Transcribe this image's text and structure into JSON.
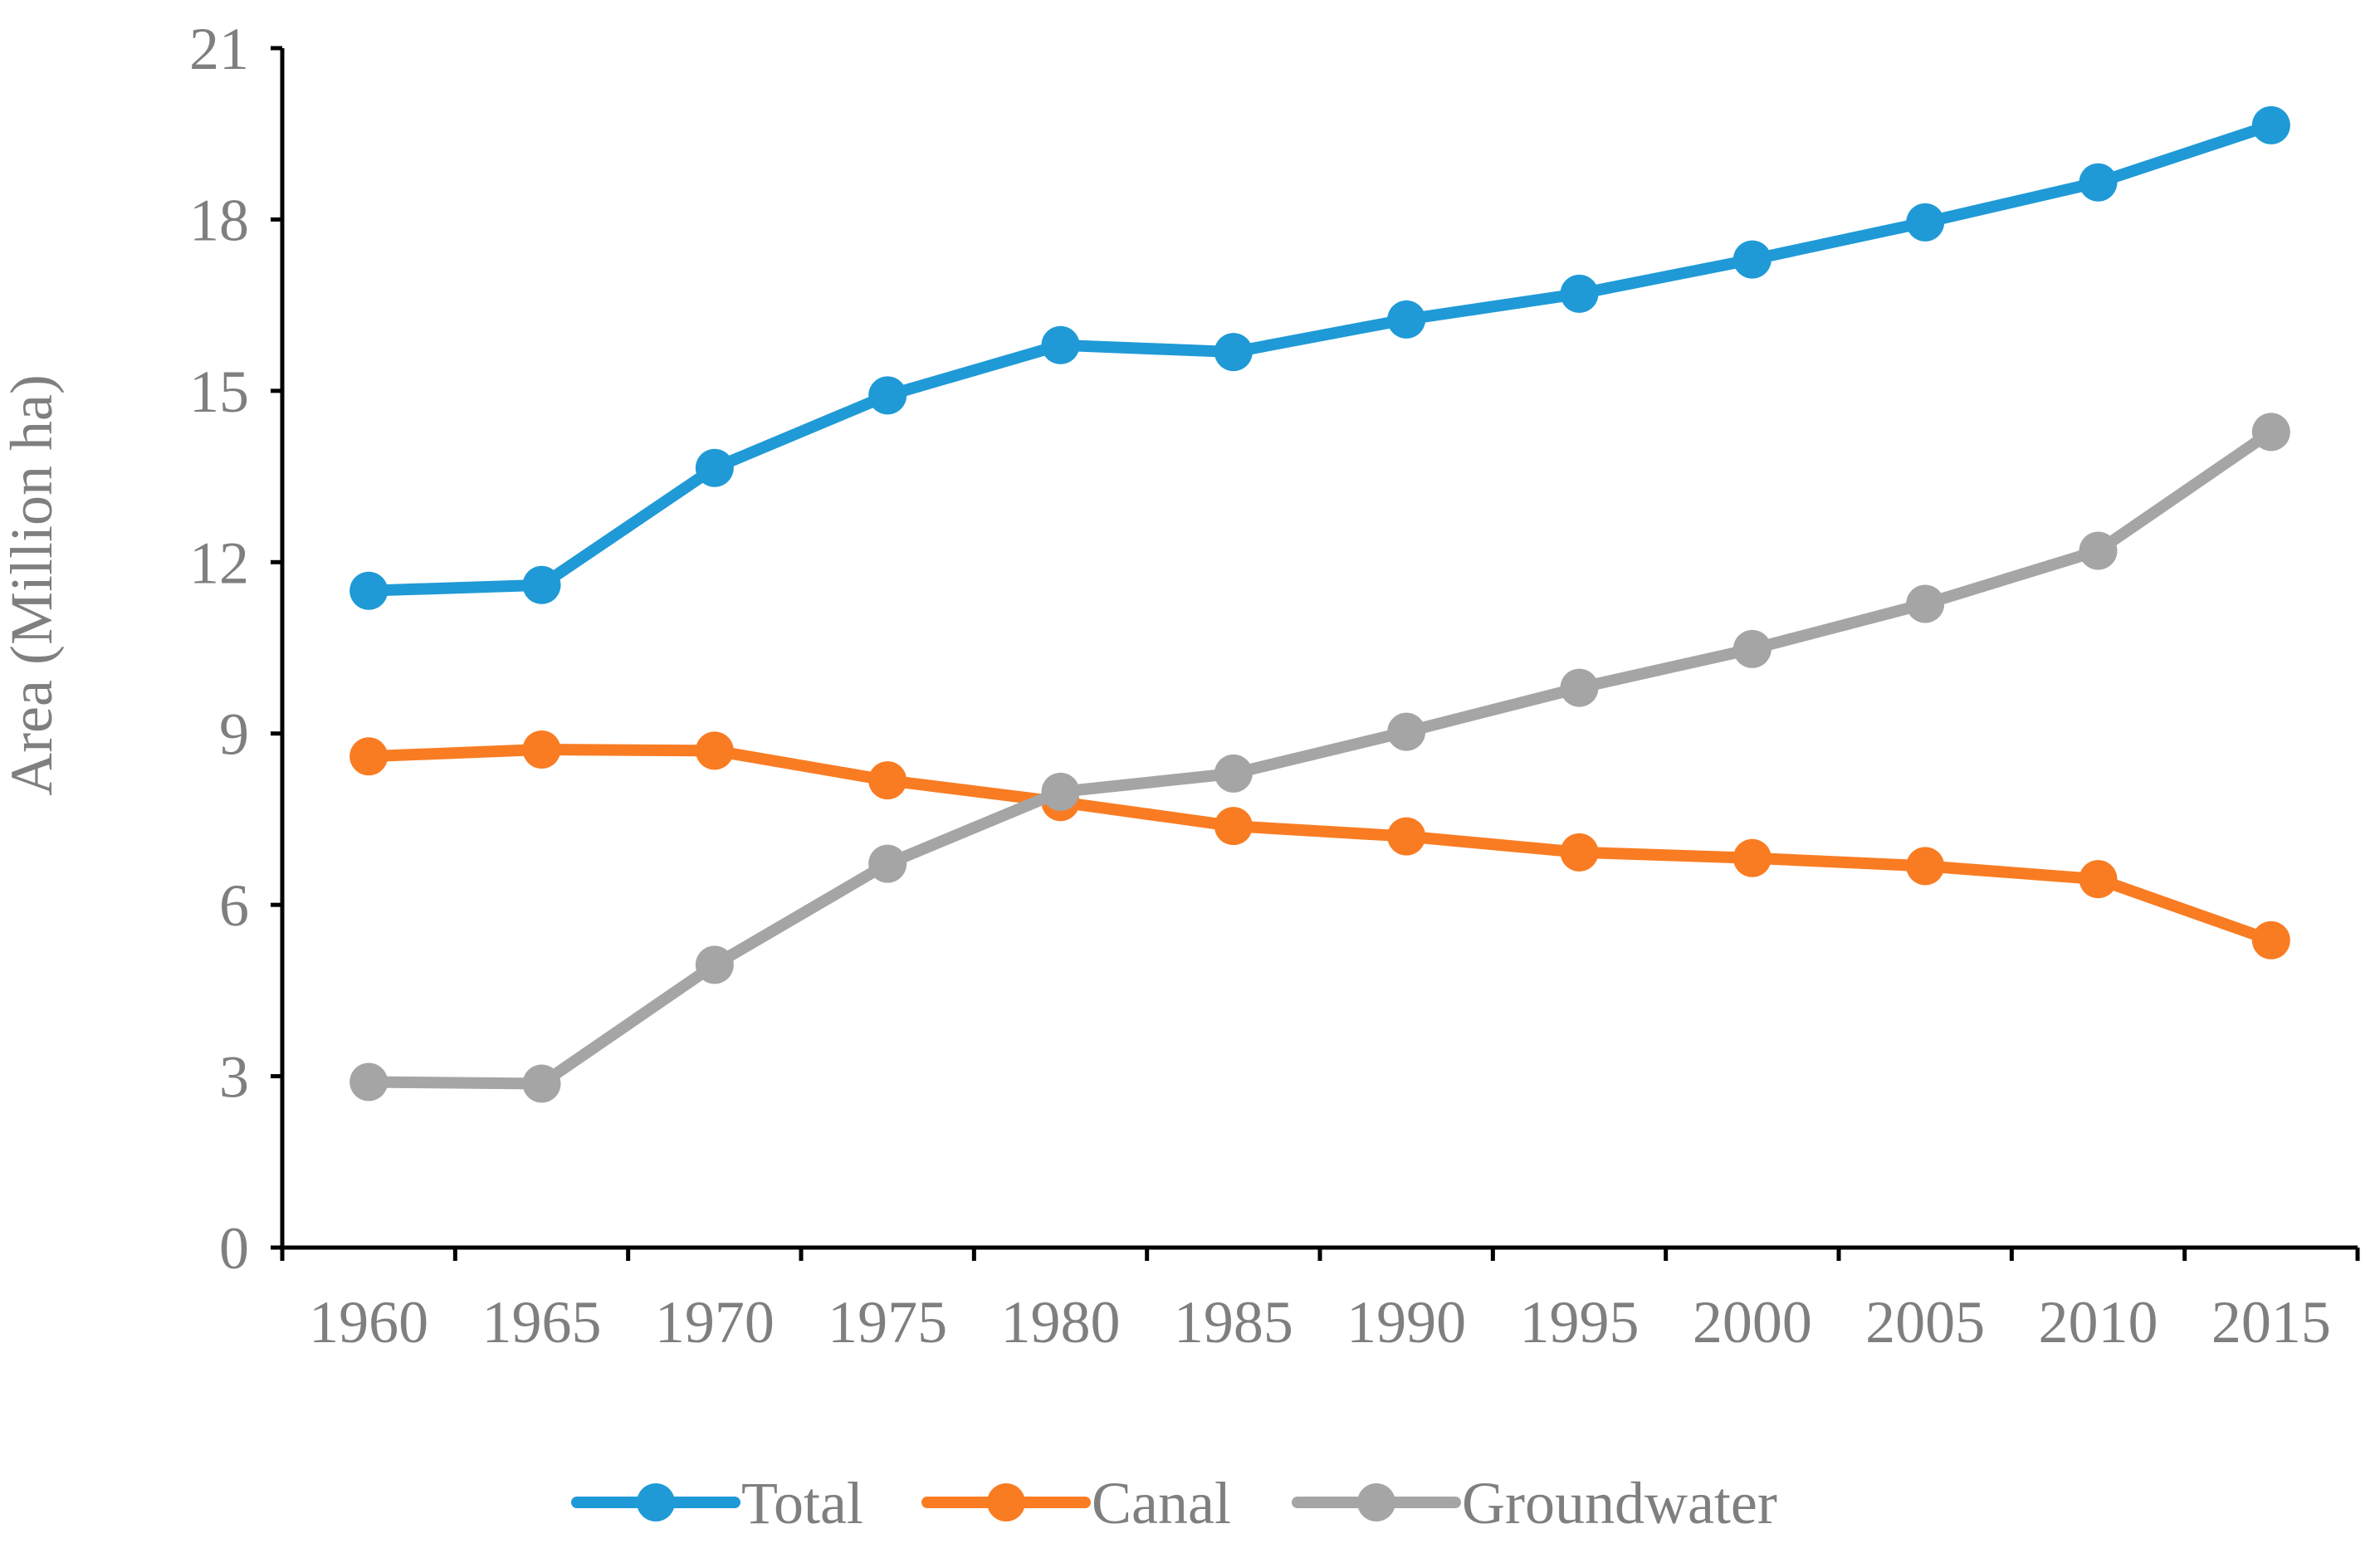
{
  "chart_data": {
    "type": "line",
    "title": "",
    "xlabel": "",
    "ylabel": "Area (Million ha)",
    "categories": [
      "1960",
      "1965",
      "1970",
      "1975",
      "1980",
      "1985",
      "1990",
      "1995",
      "2000",
      "2005",
      "2010",
      "2015"
    ],
    "ylim": [
      0,
      21
    ],
    "yticks": [
      0,
      3,
      6,
      9,
      12,
      15,
      18,
      21
    ],
    "grid": false,
    "legend_position": "bottom",
    "series": [
      {
        "name": "Total",
        "color": "#1f9ad6",
        "values": [
          11.5,
          11.6,
          13.65,
          14.92,
          15.8,
          15.68,
          16.25,
          16.7,
          17.3,
          17.95,
          18.65,
          19.65
        ]
      },
      {
        "name": "Canal",
        "color": "#f97c23",
        "values": [
          8.6,
          8.72,
          8.7,
          8.18,
          7.8,
          7.38,
          7.2,
          6.92,
          6.82,
          6.68,
          6.45,
          5.38
        ]
      },
      {
        "name": "Groundwater",
        "color": "#a5a5a5",
        "values": [
          2.9,
          2.87,
          4.95,
          6.72,
          7.98,
          8.3,
          9.03,
          9.8,
          10.48,
          11.27,
          12.2,
          14.28
        ]
      }
    ]
  }
}
